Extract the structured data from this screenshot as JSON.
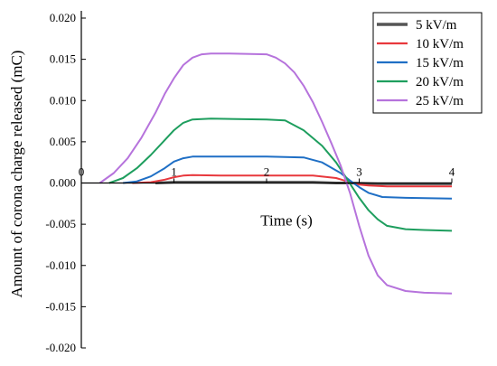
{
  "chart_data": {
    "type": "line",
    "xlabel": "Time (s)",
    "ylabel": "Amount of corona charge released (mC)",
    "xlim": [
      0,
      4
    ],
    "ylim": [
      -0.02,
      0.02
    ],
    "xticks": [
      "0",
      "1",
      "2",
      "3",
      "4"
    ],
    "yticks": [
      "0.020",
      "0.015",
      "0.010",
      "0.005",
      "0.000",
      "-0.005",
      "-0.010",
      "-0.015",
      "-0.020"
    ],
    "yticks_values": [
      0.02,
      0.015,
      0.01,
      0.005,
      0,
      -0.005,
      -0.01,
      -0.015,
      -0.02
    ],
    "legend_position": "top-right",
    "series": [
      {
        "name": "5 kV/m",
        "color": "#555555",
        "x": [
          0.8,
          1.0,
          1.5,
          2.0,
          2.5,
          2.75,
          2.9,
          3.2,
          3.6,
          4.0
        ],
        "y": [
          0.0,
          0.0001,
          0.0001,
          0.0001,
          0.0001,
          0.0,
          0.0,
          -0.0001,
          -0.0001,
          -0.0001
        ]
      },
      {
        "name": "10 kV/m",
        "color": "#e8383d",
        "x": [
          0.55,
          0.75,
          0.9,
          1.0,
          1.1,
          1.2,
          1.5,
          2.0,
          2.5,
          2.75,
          2.9,
          3.0,
          3.1,
          3.3,
          3.6,
          4.0
        ],
        "y": [
          0.0,
          0.0001,
          0.0004,
          0.0007,
          0.0009,
          0.00095,
          0.0009,
          0.0009,
          0.0009,
          0.0006,
          0.0001,
          -0.0002,
          -0.0003,
          -0.0004,
          -0.0004,
          -0.0004
        ]
      },
      {
        "name": "15 kV/m",
        "color": "#1f6fc5",
        "x": [
          0.45,
          0.6,
          0.75,
          0.9,
          1.0,
          1.1,
          1.2,
          1.3,
          1.5,
          2.0,
          2.4,
          2.6,
          2.8,
          2.9,
          3.0,
          3.1,
          3.25,
          3.5,
          4.0
        ],
        "y": [
          0.0,
          0.0002,
          0.0008,
          0.0018,
          0.0026,
          0.003,
          0.0032,
          0.0032,
          0.0032,
          0.0032,
          0.0031,
          0.0025,
          0.0012,
          0.0003,
          -0.0005,
          -0.0012,
          -0.0017,
          -0.0018,
          -0.0019
        ]
      },
      {
        "name": "20 kV/m",
        "color": "#1e9e5e",
        "x": [
          0.3,
          0.45,
          0.6,
          0.75,
          0.9,
          1.0,
          1.1,
          1.2,
          1.4,
          2.0,
          2.2,
          2.4,
          2.6,
          2.75,
          2.85,
          3.0,
          3.1,
          3.2,
          3.3,
          3.5,
          3.7,
          4.0
        ],
        "y": [
          0.0,
          0.0006,
          0.0018,
          0.0034,
          0.0052,
          0.0064,
          0.0073,
          0.0077,
          0.0078,
          0.0077,
          0.0076,
          0.0064,
          0.0045,
          0.0025,
          0.0008,
          -0.0018,
          -0.0033,
          -0.0044,
          -0.0052,
          -0.0056,
          -0.0057,
          -0.0058
        ]
      },
      {
        "name": "25 kV/m",
        "color": "#b673dc",
        "x": [
          0.2,
          0.35,
          0.5,
          0.65,
          0.8,
          0.9,
          1.0,
          1.1,
          1.2,
          1.3,
          1.4,
          1.6,
          2.0,
          2.1,
          2.2,
          2.3,
          2.4,
          2.5,
          2.6,
          2.7,
          2.8,
          2.9,
          3.0,
          3.1,
          3.2,
          3.3,
          3.5,
          3.7,
          4.0
        ],
        "y": [
          0.0,
          0.0012,
          0.003,
          0.0055,
          0.0085,
          0.0108,
          0.0127,
          0.0143,
          0.0152,
          0.0156,
          0.0157,
          0.0157,
          0.0156,
          0.0152,
          0.0145,
          0.0134,
          0.0118,
          0.0098,
          0.0074,
          0.0048,
          0.0021,
          -0.0012,
          -0.0052,
          -0.0088,
          -0.0112,
          -0.0124,
          -0.0131,
          -0.0133,
          -0.0134
        ]
      }
    ]
  }
}
